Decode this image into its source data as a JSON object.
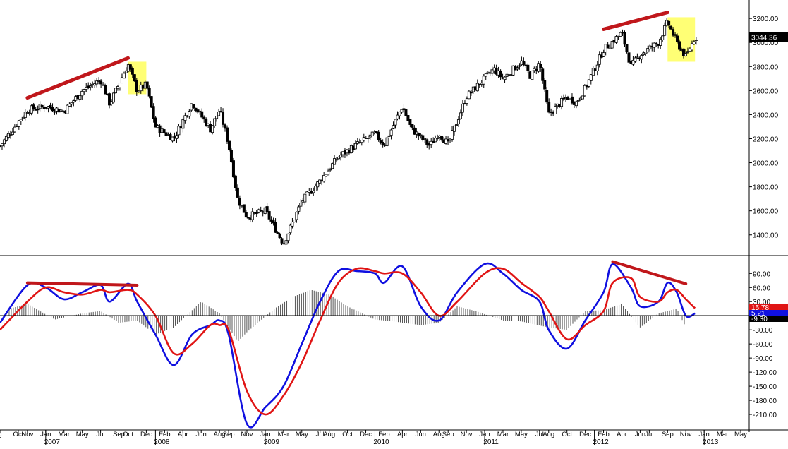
{
  "chart_data": [
    {
      "panel": "price",
      "type": "candlestick",
      "title": "",
      "xlabel": "",
      "ylabel": "",
      "ylim": [
        1240,
        3330
      ],
      "ytick_labels": [
        "1400.00",
        "1600.00",
        "1800.00",
        "2000.00",
        "2200.00",
        "2400.00",
        "2600.00",
        "2800.00",
        "3000.00",
        "3200.00"
      ],
      "ytick_values": [
        1400,
        1600,
        1800,
        2000,
        2200,
        2400,
        2600,
        2800,
        3000,
        3200
      ],
      "last_value_label": "3044.36",
      "last_value": 3044.36,
      "approx_close_path": [
        {
          "date": "2006-08",
          "value": 2140
        },
        {
          "date": "2006-11",
          "value": 2440
        },
        {
          "date": "2007-01",
          "value": 2470
        },
        {
          "date": "2007-03",
          "value": 2430
        },
        {
          "date": "2007-05",
          "value": 2600
        },
        {
          "date": "2007-07",
          "value": 2690
        },
        {
          "date": "2007-08",
          "value": 2490
        },
        {
          "date": "2007-10",
          "value": 2820
        },
        {
          "date": "2007-11",
          "value": 2600
        },
        {
          "date": "2007-12",
          "value": 2650
        },
        {
          "date": "2008-01",
          "value": 2300
        },
        {
          "date": "2008-03",
          "value": 2200
        },
        {
          "date": "2008-05",
          "value": 2500
        },
        {
          "date": "2008-07",
          "value": 2280
        },
        {
          "date": "2008-08",
          "value": 2440
        },
        {
          "date": "2008-09",
          "value": 2150
        },
        {
          "date": "2008-10",
          "value": 1700
        },
        {
          "date": "2008-11",
          "value": 1550
        },
        {
          "date": "2009-01",
          "value": 1600
        },
        {
          "date": "2009-03",
          "value": 1330
        },
        {
          "date": "2009-05",
          "value": 1680
        },
        {
          "date": "2009-07",
          "value": 1850
        },
        {
          "date": "2009-09",
          "value": 2050
        },
        {
          "date": "2009-11",
          "value": 2150
        },
        {
          "date": "2010-01",
          "value": 2240
        },
        {
          "date": "2010-02",
          "value": 2150
        },
        {
          "date": "2010-04",
          "value": 2470
        },
        {
          "date": "2010-05",
          "value": 2280
        },
        {
          "date": "2010-07",
          "value": 2140
        },
        {
          "date": "2010-08",
          "value": 2250
        },
        {
          "date": "2010-09",
          "value": 2150
        },
        {
          "date": "2010-11",
          "value": 2550
        },
        {
          "date": "2011-01",
          "value": 2700
        },
        {
          "date": "2011-02",
          "value": 2780
        },
        {
          "date": "2011-03",
          "value": 2700
        },
        {
          "date": "2011-05",
          "value": 2840
        },
        {
          "date": "2011-06",
          "value": 2720
        },
        {
          "date": "2011-07",
          "value": 2830
        },
        {
          "date": "2011-08",
          "value": 2400
        },
        {
          "date": "2011-10",
          "value": 2550
        },
        {
          "date": "2011-11",
          "value": 2500
        },
        {
          "date": "2011-12",
          "value": 2620
        },
        {
          "date": "2012-02",
          "value": 2940
        },
        {
          "date": "2012-04",
          "value": 3080
        },
        {
          "date": "2012-05",
          "value": 2800
        },
        {
          "date": "2012-06",
          "value": 2900
        },
        {
          "date": "2012-08",
          "value": 3000
        },
        {
          "date": "2012-09",
          "value": 3170
        },
        {
          "date": "2012-10",
          "value": 3000
        },
        {
          "date": "2012-11",
          "value": 2880
        },
        {
          "date": "2012-12",
          "value": 3044.36
        }
      ],
      "annotations": [
        {
          "type": "trend-line",
          "color": "#c0171b",
          "from": {
            "date": "2006-11",
            "value": 2540
          },
          "to": {
            "date": "2007-10",
            "value": 2870
          }
        },
        {
          "type": "trend-line",
          "color": "#c0171b",
          "from": {
            "date": "2012-02",
            "value": 3110
          },
          "to": {
            "date": "2012-09",
            "value": 3250
          }
        },
        {
          "type": "highlight-box",
          "color": "#ffff66",
          "x_from": "2007-10",
          "x_to": "2007-12",
          "y_from": 2570,
          "y_to": 2840
        },
        {
          "type": "highlight-box",
          "color": "#ffff66",
          "x_from": "2012-09",
          "x_to": "2012-12",
          "y_from": 2840,
          "y_to": 3210
        }
      ],
      "grid": false,
      "legend": "none"
    },
    {
      "panel": "oscillator",
      "type": "line",
      "title": "",
      "xlabel": "",
      "ylabel": "",
      "ylim": [
        -240,
        125
      ],
      "ytick_labels": [
        "-210.00",
        "-180.00",
        "-150.00",
        "-120.00",
        "-90.00",
        "-60.00",
        "-30.00",
        "30.00",
        "60.00",
        "90.00"
      ],
      "ytick_values": [
        -210,
        -180,
        -150,
        -120,
        -90,
        -60,
        -30,
        30,
        60,
        90
      ],
      "last_value_labels": [
        "15.78",
        "5.21",
        "-9.30"
      ],
      "series": [
        {
          "color": "#1010e0",
          "points": [
            {
              "date": "2006-08",
              "value": -15
            },
            {
              "date": "2006-11",
              "value": 65
            },
            {
              "date": "2007-01",
              "value": 60
            },
            {
              "date": "2007-03",
              "value": 35
            },
            {
              "date": "2007-05",
              "value": 50
            },
            {
              "date": "2007-07",
              "value": 65
            },
            {
              "date": "2007-08",
              "value": 30
            },
            {
              "date": "2007-10",
              "value": 68
            },
            {
              "date": "2007-11",
              "value": 30
            },
            {
              "date": "2008-01",
              "value": -40
            },
            {
              "date": "2008-03",
              "value": -105
            },
            {
              "date": "2008-05",
              "value": -40
            },
            {
              "date": "2008-07",
              "value": -20
            },
            {
              "date": "2008-08",
              "value": -10
            },
            {
              "date": "2008-09",
              "value": -40
            },
            {
              "date": "2008-11",
              "value": -230
            },
            {
              "date": "2009-01",
              "value": -195
            },
            {
              "date": "2009-03",
              "value": -150
            },
            {
              "date": "2009-05",
              "value": -60
            },
            {
              "date": "2009-07",
              "value": 30
            },
            {
              "date": "2009-09",
              "value": 95
            },
            {
              "date": "2009-11",
              "value": 95
            },
            {
              "date": "2010-01",
              "value": 90
            },
            {
              "date": "2010-02",
              "value": 70
            },
            {
              "date": "2010-04",
              "value": 105
            },
            {
              "date": "2010-06",
              "value": 20
            },
            {
              "date": "2010-08",
              "value": -10
            },
            {
              "date": "2010-10",
              "value": 50
            },
            {
              "date": "2011-01",
              "value": 110
            },
            {
              "date": "2011-03",
              "value": 90
            },
            {
              "date": "2011-05",
              "value": 55
            },
            {
              "date": "2011-07",
              "value": 30
            },
            {
              "date": "2011-08",
              "value": -30
            },
            {
              "date": "2011-10",
              "value": -70
            },
            {
              "date": "2011-12",
              "value": -10
            },
            {
              "date": "2012-02",
              "value": 50
            },
            {
              "date": "2012-03",
              "value": 110
            },
            {
              "date": "2012-05",
              "value": 60
            },
            {
              "date": "2012-06",
              "value": 20
            },
            {
              "date": "2012-08",
              "value": 30
            },
            {
              "date": "2012-09",
              "value": 70
            },
            {
              "date": "2012-10",
              "value": 50
            },
            {
              "date": "2012-11",
              "value": 0
            },
            {
              "date": "2012-12",
              "value": 5
            }
          ]
        },
        {
          "color": "#e01515",
          "points": [
            {
              "date": "2006-08",
              "value": -30
            },
            {
              "date": "2006-11",
              "value": 30
            },
            {
              "date": "2007-01",
              "value": 60
            },
            {
              "date": "2007-03",
              "value": 50
            },
            {
              "date": "2007-05",
              "value": 45
            },
            {
              "date": "2007-07",
              "value": 55
            },
            {
              "date": "2007-08",
              "value": 50
            },
            {
              "date": "2007-10",
              "value": 55
            },
            {
              "date": "2007-11",
              "value": 45
            },
            {
              "date": "2008-01",
              "value": 0
            },
            {
              "date": "2008-03",
              "value": -80
            },
            {
              "date": "2008-05",
              "value": -60
            },
            {
              "date": "2008-07",
              "value": -20
            },
            {
              "date": "2008-08",
              "value": -20
            },
            {
              "date": "2008-09",
              "value": -30
            },
            {
              "date": "2008-11",
              "value": -160
            },
            {
              "date": "2009-01",
              "value": -210
            },
            {
              "date": "2009-03",
              "value": -170
            },
            {
              "date": "2009-05",
              "value": -100
            },
            {
              "date": "2009-07",
              "value": -10
            },
            {
              "date": "2009-09",
              "value": 70
            },
            {
              "date": "2009-11",
              "value": 100
            },
            {
              "date": "2010-01",
              "value": 95
            },
            {
              "date": "2010-02",
              "value": 90
            },
            {
              "date": "2010-04",
              "value": 90
            },
            {
              "date": "2010-06",
              "value": 50
            },
            {
              "date": "2010-08",
              "value": 0
            },
            {
              "date": "2010-10",
              "value": 30
            },
            {
              "date": "2011-01",
              "value": 90
            },
            {
              "date": "2011-03",
              "value": 100
            },
            {
              "date": "2011-05",
              "value": 70
            },
            {
              "date": "2011-07",
              "value": 40
            },
            {
              "date": "2011-08",
              "value": 10
            },
            {
              "date": "2011-10",
              "value": -50
            },
            {
              "date": "2011-12",
              "value": -20
            },
            {
              "date": "2012-02",
              "value": 10
            },
            {
              "date": "2012-03",
              "value": 70
            },
            {
              "date": "2012-05",
              "value": 80
            },
            {
              "date": "2012-06",
              "value": 40
            },
            {
              "date": "2012-08",
              "value": 30
            },
            {
              "date": "2012-09",
              "value": 50
            },
            {
              "date": "2012-10",
              "value": 55
            },
            {
              "date": "2012-11",
              "value": 35
            },
            {
              "date": "2012-12",
              "value": 16
            }
          ]
        }
      ],
      "histogram": {
        "color": "#555555",
        "bars": [
          {
            "date": "2006-09",
            "value": 15
          },
          {
            "date": "2006-11",
            "value": 25
          },
          {
            "date": "2007-02",
            "value": -8
          },
          {
            "date": "2007-05",
            "value": 5
          },
          {
            "date": "2007-07",
            "value": 10
          },
          {
            "date": "2007-09",
            "value": -15
          },
          {
            "date": "2007-11",
            "value": -10
          },
          {
            "date": "2008-01",
            "value": -40
          },
          {
            "date": "2008-03",
            "value": -25
          },
          {
            "date": "2008-06",
            "value": 30
          },
          {
            "date": "2008-08",
            "value": 5
          },
          {
            "date": "2008-10",
            "value": -55
          },
          {
            "date": "2008-11",
            "value": -35
          },
          {
            "date": "2009-02",
            "value": 15
          },
          {
            "date": "2009-04",
            "value": 40
          },
          {
            "date": "2009-06",
            "value": 55
          },
          {
            "date": "2009-08",
            "value": 45
          },
          {
            "date": "2009-10",
            "value": 20
          },
          {
            "date": "2010-01",
            "value": -8
          },
          {
            "date": "2010-03",
            "value": -12
          },
          {
            "date": "2010-06",
            "value": -20
          },
          {
            "date": "2010-08",
            "value": -15
          },
          {
            "date": "2010-10",
            "value": 20
          },
          {
            "date": "2010-12",
            "value": 10
          },
          {
            "date": "2011-03",
            "value": -10
          },
          {
            "date": "2011-05",
            "value": -12
          },
          {
            "date": "2011-08",
            "value": -25
          },
          {
            "date": "2011-10",
            "value": -30
          },
          {
            "date": "2011-12",
            "value": 10
          },
          {
            "date": "2012-02",
            "value": 12
          },
          {
            "date": "2012-04",
            "value": 25
          },
          {
            "date": "2012-06",
            "value": -25
          },
          {
            "date": "2012-08",
            "value": 5
          },
          {
            "date": "2012-10",
            "value": 15
          },
          {
            "date": "2012-11",
            "value": -25
          }
        ]
      },
      "annotations": [
        {
          "type": "trend-line",
          "color": "#c0171b",
          "from": {
            "date": "2006-11",
            "value": 70
          },
          "to": {
            "date": "2007-11",
            "value": 65
          }
        },
        {
          "type": "trend-line",
          "color": "#c0171b",
          "from": {
            "date": "2012-03",
            "value": 115
          },
          "to": {
            "date": "2012-11",
            "value": 68
          }
        }
      ],
      "grid": false,
      "legend": "none"
    }
  ],
  "x_axis": {
    "month_labels": [
      "g",
      "Oct",
      "Nov",
      "Jan",
      "Mar",
      "May",
      "Jul",
      "Sep",
      "Oct",
      "Dec",
      "Feb",
      "Apr",
      "Jun",
      "Aug",
      "Sep",
      "Nov",
      "Jan",
      "Mar",
      "May",
      "Jul",
      "Aug",
      "Oct",
      "Dec",
      "Feb",
      "Apr",
      "Jun",
      "Aug",
      "Sep",
      "Nov",
      "Jan",
      "Mar",
      "May",
      "Jul",
      "Aug",
      "Oct",
      "Dec",
      "Feb",
      "Apr",
      "Jun",
      "Jul",
      "Sep",
      "Nov",
      "Jan",
      "Mar",
      "May"
    ],
    "month_dates": [
      "2006-08",
      "2006-10",
      "2006-11",
      "2007-01",
      "2007-03",
      "2007-05",
      "2007-07",
      "2007-09",
      "2007-10",
      "2007-12",
      "2008-02",
      "2008-04",
      "2008-06",
      "2008-08",
      "2008-09",
      "2008-11",
      "2009-01",
      "2009-03",
      "2009-05",
      "2009-07",
      "2009-08",
      "2009-10",
      "2009-12",
      "2010-02",
      "2010-04",
      "2010-06",
      "2010-08",
      "2010-09",
      "2010-11",
      "2011-01",
      "2011-03",
      "2011-05",
      "2011-07",
      "2011-08",
      "2011-10",
      "2011-12",
      "2012-02",
      "2012-04",
      "2012-06",
      "2012-07",
      "2012-09",
      "2012-11",
      "2013-01",
      "2013-03",
      "2013-05"
    ],
    "year_labels": [
      "2007",
      "2008",
      "2009",
      "2010",
      "2011",
      "2012",
      "2013"
    ]
  }
}
